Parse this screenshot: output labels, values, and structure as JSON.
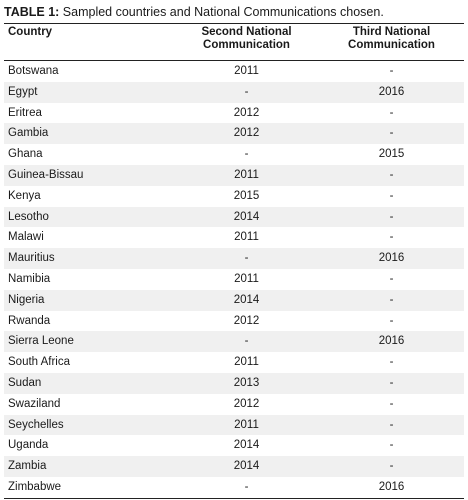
{
  "caption": {
    "label": "TABLE 1:",
    "text": " Sampled countries and National Communications chosen."
  },
  "table": {
    "headers": [
      "Country",
      "Second National Communication",
      "Third National Communication"
    ],
    "rows": [
      [
        "Botswana",
        "2011",
        "-"
      ],
      [
        "Egypt",
        "-",
        "2016"
      ],
      [
        "Eritrea",
        "2012",
        "-"
      ],
      [
        "Gambia",
        "2012",
        "-"
      ],
      [
        "Ghana",
        "-",
        "2015"
      ],
      [
        "Guinea-Bissau",
        "2011",
        "-"
      ],
      [
        "Kenya",
        "2015",
        "-"
      ],
      [
        "Lesotho",
        "2014",
        "-"
      ],
      [
        "Malawi",
        "2011",
        "-"
      ],
      [
        "Mauritius",
        "-",
        "2016"
      ],
      [
        "Namibia",
        "2011",
        "-"
      ],
      [
        "Nigeria",
        "2014",
        "-"
      ],
      [
        "Rwanda",
        "2012",
        "-"
      ],
      [
        "Sierra Leone",
        "-",
        "2016"
      ],
      [
        "South Africa",
        "2011",
        "-"
      ],
      [
        "Sudan",
        "2013",
        "-"
      ],
      [
        "Swaziland",
        "2012",
        "-"
      ],
      [
        "Seychelles",
        "2011",
        "-"
      ],
      [
        "Uganda",
        "2014",
        "-"
      ],
      [
        "Zambia",
        "2014",
        "-"
      ],
      [
        "Zimbabwe",
        "-",
        "2016"
      ]
    ]
  }
}
